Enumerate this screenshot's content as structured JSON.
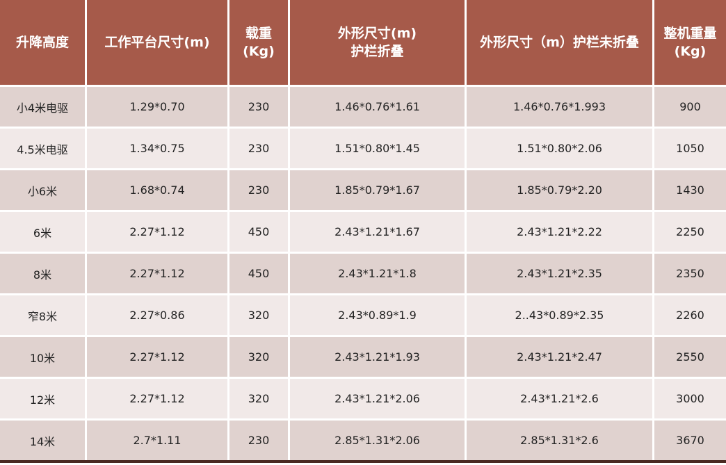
{
  "colors": {
    "header_bg": "#a65a4a",
    "row_dark": "#e0d2cf",
    "row_light": "#f1e9e8"
  },
  "headers": [
    "升降高度",
    "工作平台尺寸(m)",
    "载重\n(Kg)",
    "外形尺寸(m)\n护栏折叠",
    "外形尺寸（m）护栏未折叠",
    "整机重量\n(Kg)"
  ],
  "rows": [
    [
      "小4米电驱",
      "1.29*0.70",
      "230",
      "1.46*0.76*1.61",
      "1.46*0.76*1.993",
      "900"
    ],
    [
      "4.5米电驱",
      "1.34*0.75",
      "230",
      "1.51*0.80*1.45",
      "1.51*0.80*2.06",
      "1050"
    ],
    [
      "小6米",
      "1.68*0.74",
      "230",
      "1.85*0.79*1.67",
      "1.85*0.79*2.20",
      "1430"
    ],
    [
      "6米",
      "2.27*1.12",
      "450",
      "2.43*1.21*1.67",
      "2.43*1.21*2.22",
      "2250"
    ],
    [
      "8米",
      "2.27*1.12",
      "450",
      "2.43*1.21*1.8",
      "2.43*1.21*2.35",
      "2350"
    ],
    [
      "窄8米",
      "2.27*0.86",
      "320",
      "2.43*0.89*1.9",
      "2..43*0.89*2.35",
      "2260"
    ],
    [
      "10米",
      "2.27*1.12",
      "320",
      "2.43*1.21*1.93",
      "2.43*1.21*2.47",
      "2550"
    ],
    [
      "12米",
      "2.27*1.12",
      "320",
      "2.43*1.21*2.06",
      "2.43*1.21*2.6",
      "3000"
    ],
    [
      "14米",
      "2.7*1.11",
      "230",
      "2.85*1.31*2.06",
      "2.85*1.31*2.6",
      "3670"
    ]
  ]
}
